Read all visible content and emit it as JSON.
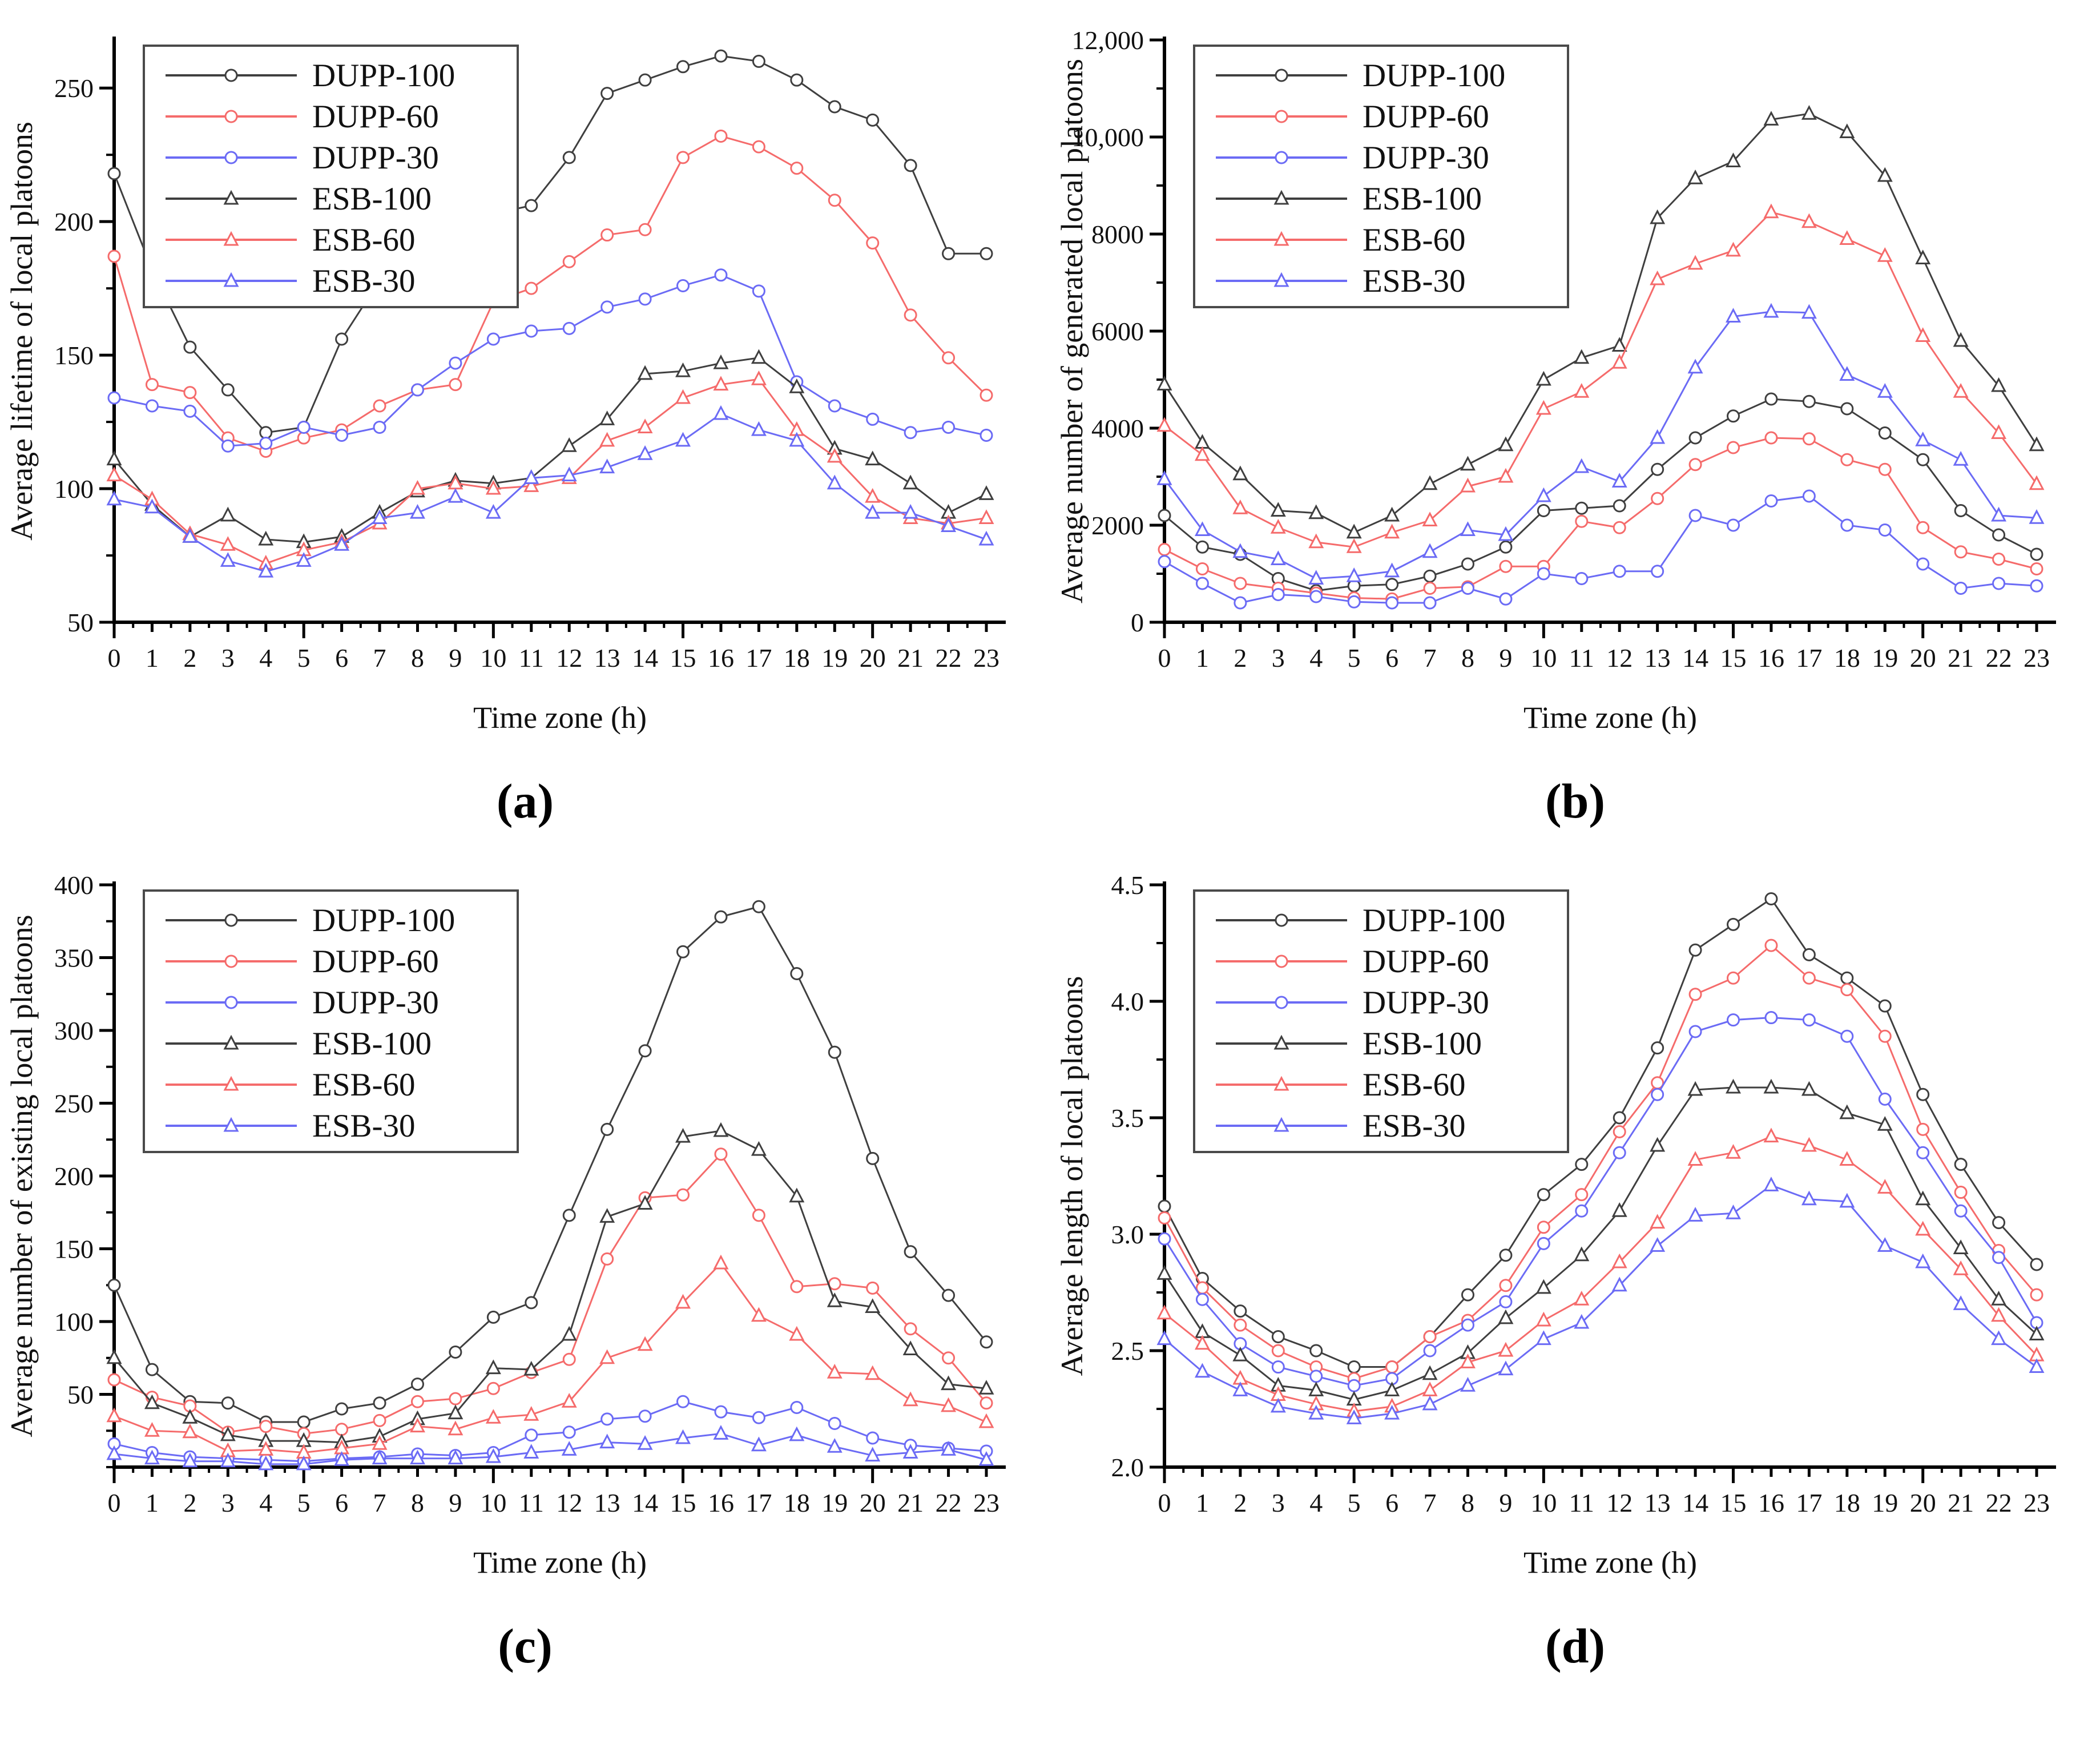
{
  "figure": {
    "background": "#ffffff"
  },
  "colors": {
    "black": "#3f3f3f",
    "red": "#f56b6b",
    "blue": "#6b6bf5",
    "axis": "#000000",
    "legend_border": "#4a4a4a"
  },
  "x_axis": {
    "label": "Time zone (h)",
    "tick_labels": [
      "0",
      "1",
      "2",
      "3",
      "4",
      "5",
      "6",
      "7",
      "8",
      "9",
      "10",
      "11",
      "12",
      "13",
      "14",
      "15",
      "16",
      "17",
      "18",
      "19",
      "20",
      "21",
      "22",
      "23"
    ]
  },
  "legend": {
    "entries": [
      "DUPP-100",
      "DUPP-60",
      "DUPP-30",
      "ESB-100",
      "ESB-60",
      "ESB-30"
    ]
  },
  "chart_data": [
    {
      "type": "line",
      "caption": "(a)",
      "ylabel": "Average lifetime of local platoons",
      "xlabel": "Time zone (h)",
      "x": [
        0,
        1,
        2,
        3,
        4,
        5,
        6,
        7,
        8,
        9,
        10,
        11,
        12,
        13,
        14,
        15,
        16,
        17,
        18,
        19,
        20,
        21,
        22,
        23
      ],
      "ylim": [
        50,
        268
      ],
      "yticks": [
        {
          "v": 50,
          "label": "50"
        },
        {
          "v": 100,
          "label": "100"
        },
        {
          "v": 150,
          "label": "150"
        },
        {
          "v": 200,
          "label": "200"
        },
        {
          "v": 250,
          "label": "250"
        }
      ],
      "yminor": 25,
      "legend_position": "top-left",
      "series": [
        {
          "name": "DUPP-100",
          "color": "black",
          "marker": "circle",
          "values": [
            218,
            182,
            153,
            137,
            121,
            123,
            156,
            178,
            198,
            201,
            203,
            206,
            224,
            248,
            253,
            258,
            262,
            260,
            253,
            243,
            238,
            221,
            188,
            188
          ]
        },
        {
          "name": "DUPP-60",
          "color": "red",
          "marker": "circle",
          "values": [
            187,
            139,
            136,
            119,
            114,
            119,
            122,
            131,
            137,
            139,
            170,
            175,
            185,
            195,
            197,
            224,
            232,
            228,
            220,
            208,
            192,
            165,
            149,
            135
          ]
        },
        {
          "name": "DUPP-30",
          "color": "blue",
          "marker": "circle",
          "values": [
            134,
            131,
            129,
            116,
            117,
            123,
            120,
            123,
            137,
            147,
            156,
            159,
            160,
            168,
            171,
            176,
            180,
            174,
            140,
            131,
            126,
            121,
            123,
            120
          ]
        },
        {
          "name": "ESB-100",
          "color": "black",
          "marker": "triangle",
          "values": [
            111,
            94,
            82,
            90,
            81,
            80,
            82,
            91,
            99,
            103,
            102,
            104,
            116,
            126,
            143,
            144,
            147,
            149,
            138,
            115,
            111,
            102,
            91,
            98
          ]
        },
        {
          "name": "ESB-60",
          "color": "red",
          "marker": "triangle",
          "values": [
            105,
            96,
            83,
            79,
            72,
            77,
            80,
            87,
            100,
            102,
            100,
            101,
            104,
            118,
            123,
            134,
            139,
            141,
            122,
            112,
            97,
            89,
            87,
            89
          ]
        },
        {
          "name": "ESB-30",
          "color": "blue",
          "marker": "triangle",
          "values": [
            96,
            93,
            82,
            73,
            69,
            73,
            79,
            89,
            91,
            97,
            91,
            104,
            105,
            108,
            113,
            118,
            128,
            122,
            118,
            102,
            91,
            91,
            86,
            81
          ]
        }
      ]
    },
    {
      "type": "line",
      "caption": "(b)",
      "ylabel": "Average number of generated local platoons",
      "xlabel": "Time zone (h)",
      "x": [
        0,
        1,
        2,
        3,
        4,
        5,
        6,
        7,
        8,
        9,
        10,
        11,
        12,
        13,
        14,
        15,
        16,
        17,
        18,
        19,
        20,
        21,
        22,
        23
      ],
      "ylim": [
        0,
        12000
      ],
      "yticks": [
        {
          "v": 0,
          "label": "0"
        },
        {
          "v": 2000,
          "label": "2000"
        },
        {
          "v": 4000,
          "label": "4000"
        },
        {
          "v": 6000,
          "label": "6000"
        },
        {
          "v": 8000,
          "label": "8000"
        },
        {
          "v": 10000,
          "label": "10,000"
        },
        {
          "v": 12000,
          "label": "12,000"
        }
      ],
      "yminor": 1000,
      "legend_position": "top-left",
      "series": [
        {
          "name": "DUPP-100",
          "color": "black",
          "marker": "circle",
          "values": [
            2200,
            1550,
            1400,
            900,
            650,
            750,
            780,
            950,
            1200,
            1550,
            2300,
            2350,
            2400,
            3150,
            3800,
            4250,
            4600,
            4550,
            4400,
            3900,
            3350,
            2300,
            1800,
            1400
          ]
        },
        {
          "name": "DUPP-60",
          "color": "red",
          "marker": "circle",
          "values": [
            1500,
            1100,
            800,
            700,
            600,
            500,
            480,
            700,
            730,
            1150,
            1150,
            2080,
            1950,
            2550,
            3250,
            3600,
            3800,
            3780,
            3350,
            3150,
            1950,
            1450,
            1300,
            1100
          ]
        },
        {
          "name": "DUPP-30",
          "color": "blue",
          "marker": "circle",
          "values": [
            1250,
            800,
            400,
            570,
            530,
            420,
            400,
            400,
            700,
            480,
            1000,
            900,
            1050,
            1050,
            2200,
            2000,
            2500,
            2600,
            2000,
            1900,
            1200,
            700,
            800,
            750
          ]
        },
        {
          "name": "ESB-100",
          "color": "black",
          "marker": "triangle",
          "values": [
            4900,
            3700,
            3050,
            2300,
            2250,
            1850,
            2200,
            2850,
            3250,
            3650,
            5000,
            5450,
            5700,
            8330,
            9150,
            9500,
            10360,
            10480,
            10100,
            9200,
            7500,
            5800,
            4870,
            3650
          ]
        },
        {
          "name": "ESB-60",
          "color": "red",
          "marker": "triangle",
          "values": [
            4050,
            3450,
            2350,
            1950,
            1650,
            1550,
            1850,
            2100,
            2800,
            3000,
            4400,
            4750,
            5350,
            7070,
            7390,
            7660,
            8450,
            8250,
            7900,
            7550,
            5900,
            4750,
            3900,
            2850
          ]
        },
        {
          "name": "ESB-30",
          "color": "blue",
          "marker": "triangle",
          "values": [
            2950,
            1900,
            1450,
            1300,
            900,
            950,
            1050,
            1450,
            1900,
            1800,
            2600,
            3200,
            2900,
            3800,
            5250,
            6300,
            6400,
            6380,
            5100,
            4750,
            3750,
            3350,
            2200,
            2150
          ]
        }
      ]
    },
    {
      "type": "line",
      "caption": "(c)",
      "ylabel": "Average number of existing local platoons",
      "xlabel": "Time zone (h)",
      "x": [
        0,
        1,
        2,
        3,
        4,
        5,
        6,
        7,
        8,
        9,
        10,
        11,
        12,
        13,
        14,
        15,
        16,
        17,
        18,
        19,
        20,
        21,
        22,
        23
      ],
      "ylim": [
        0,
        400
      ],
      "yticks": [
        {
          "v": 50,
          "label": "50"
        },
        {
          "v": 100,
          "label": "100"
        },
        {
          "v": 150,
          "label": "150"
        },
        {
          "v": 200,
          "label": "200"
        },
        {
          "v": 250,
          "label": "250"
        },
        {
          "v": 300,
          "label": "300"
        },
        {
          "v": 350,
          "label": "350"
        },
        {
          "v": 400,
          "label": "400"
        }
      ],
      "yminor": 25,
      "legend_position": "top-left",
      "series": [
        {
          "name": "DUPP-100",
          "color": "black",
          "marker": "circle",
          "values": [
            125,
            67,
            45,
            44,
            31,
            31,
            40,
            44,
            57,
            79,
            103,
            113,
            173,
            232,
            286,
            354,
            378,
            385,
            339,
            285,
            212,
            148,
            118,
            86
          ]
        },
        {
          "name": "DUPP-60",
          "color": "red",
          "marker": "circle",
          "values": [
            60,
            48,
            42,
            24,
            28,
            23,
            26,
            32,
            45,
            47,
            54,
            65,
            74,
            143,
            185,
            187,
            215,
            173,
            124,
            126,
            123,
            95,
            75,
            44
          ]
        },
        {
          "name": "DUPP-30",
          "color": "blue",
          "marker": "circle",
          "values": [
            16,
            10,
            7,
            6,
            5,
            4,
            6,
            7,
            9,
            8,
            10,
            22,
            24,
            33,
            35,
            45,
            38,
            34,
            41,
            30,
            20,
            15,
            13,
            11
          ]
        },
        {
          "name": "ESB-100",
          "color": "black",
          "marker": "triangle",
          "values": [
            75,
            44,
            34,
            22,
            18,
            18,
            17,
            21,
            33,
            37,
            68,
            67,
            91,
            172,
            181,
            227,
            231,
            218,
            186,
            114,
            110,
            81,
            57,
            54
          ]
        },
        {
          "name": "ESB-60",
          "color": "red",
          "marker": "triangle",
          "values": [
            35,
            25,
            24,
            11,
            12,
            10,
            13,
            16,
            28,
            26,
            34,
            36,
            45,
            75,
            84,
            113,
            140,
            104,
            91,
            65,
            64,
            46,
            42,
            31
          ]
        },
        {
          "name": "ESB-30",
          "color": "blue",
          "marker": "triangle",
          "values": [
            9,
            6,
            4,
            4,
            2,
            2,
            5,
            6,
            6,
            6,
            7,
            10,
            12,
            17,
            16,
            20,
            23,
            15,
            22,
            14,
            8,
            10,
            12,
            5
          ]
        }
      ]
    },
    {
      "type": "line",
      "caption": "(d)",
      "ylabel": "Average length of local platoons",
      "xlabel": "Time zone (h)",
      "x": [
        0,
        1,
        2,
        3,
        4,
        5,
        6,
        7,
        8,
        9,
        10,
        11,
        12,
        13,
        14,
        15,
        16,
        17,
        18,
        19,
        20,
        21,
        22,
        23
      ],
      "ylim": [
        2.0,
        4.5
      ],
      "yticks": [
        {
          "v": 2.0,
          "label": "2.0"
        },
        {
          "v": 2.5,
          "label": "2.5"
        },
        {
          "v": 3.0,
          "label": "3.0"
        },
        {
          "v": 3.5,
          "label": "3.5"
        },
        {
          "v": 4.0,
          "label": "4.0"
        },
        {
          "v": 4.5,
          "label": "4.5"
        }
      ],
      "yminor": 0.25,
      "legend_position": "top-left",
      "series": [
        {
          "name": "DUPP-100",
          "color": "black",
          "marker": "circle",
          "values": [
            3.12,
            2.81,
            2.67,
            2.56,
            2.5,
            2.43,
            2.43,
            2.56,
            2.74,
            2.91,
            3.17,
            3.3,
            3.5,
            3.8,
            4.22,
            4.33,
            4.44,
            4.2,
            4.1,
            3.98,
            3.6,
            3.3,
            3.05,
            2.87
          ]
        },
        {
          "name": "DUPP-60",
          "color": "red",
          "marker": "circle",
          "values": [
            3.07,
            2.77,
            2.61,
            2.5,
            2.43,
            2.38,
            2.43,
            2.56,
            2.63,
            2.78,
            3.03,
            3.17,
            3.44,
            3.65,
            4.03,
            4.1,
            4.24,
            4.1,
            4.05,
            3.85,
            3.45,
            3.18,
            2.93,
            2.74
          ]
        },
        {
          "name": "DUPP-30",
          "color": "blue",
          "marker": "circle",
          "values": [
            2.98,
            2.72,
            2.53,
            2.43,
            2.39,
            2.35,
            2.38,
            2.5,
            2.61,
            2.71,
            2.96,
            3.1,
            3.35,
            3.6,
            3.87,
            3.92,
            3.93,
            3.92,
            3.85,
            3.58,
            3.35,
            3.1,
            2.9,
            2.62
          ]
        },
        {
          "name": "ESB-100",
          "color": "black",
          "marker": "triangle",
          "values": [
            2.83,
            2.58,
            2.48,
            2.35,
            2.33,
            2.29,
            2.33,
            2.4,
            2.49,
            2.64,
            2.77,
            2.91,
            3.1,
            3.38,
            3.62,
            3.63,
            3.63,
            3.62,
            3.52,
            3.47,
            3.15,
            2.94,
            2.72,
            2.57
          ]
        },
        {
          "name": "ESB-60",
          "color": "red",
          "marker": "triangle",
          "values": [
            2.66,
            2.53,
            2.38,
            2.31,
            2.27,
            2.24,
            2.26,
            2.33,
            2.45,
            2.5,
            2.63,
            2.72,
            2.88,
            3.05,
            3.32,
            3.35,
            3.42,
            3.38,
            3.32,
            3.2,
            3.02,
            2.85,
            2.65,
            2.48
          ]
        },
        {
          "name": "ESB-30",
          "color": "blue",
          "marker": "triangle",
          "values": [
            2.55,
            2.41,
            2.33,
            2.26,
            2.23,
            2.21,
            2.23,
            2.27,
            2.35,
            2.42,
            2.55,
            2.62,
            2.78,
            2.95,
            3.08,
            3.09,
            3.21,
            3.15,
            3.14,
            2.95,
            2.88,
            2.7,
            2.55,
            2.43
          ]
        }
      ]
    }
  ]
}
